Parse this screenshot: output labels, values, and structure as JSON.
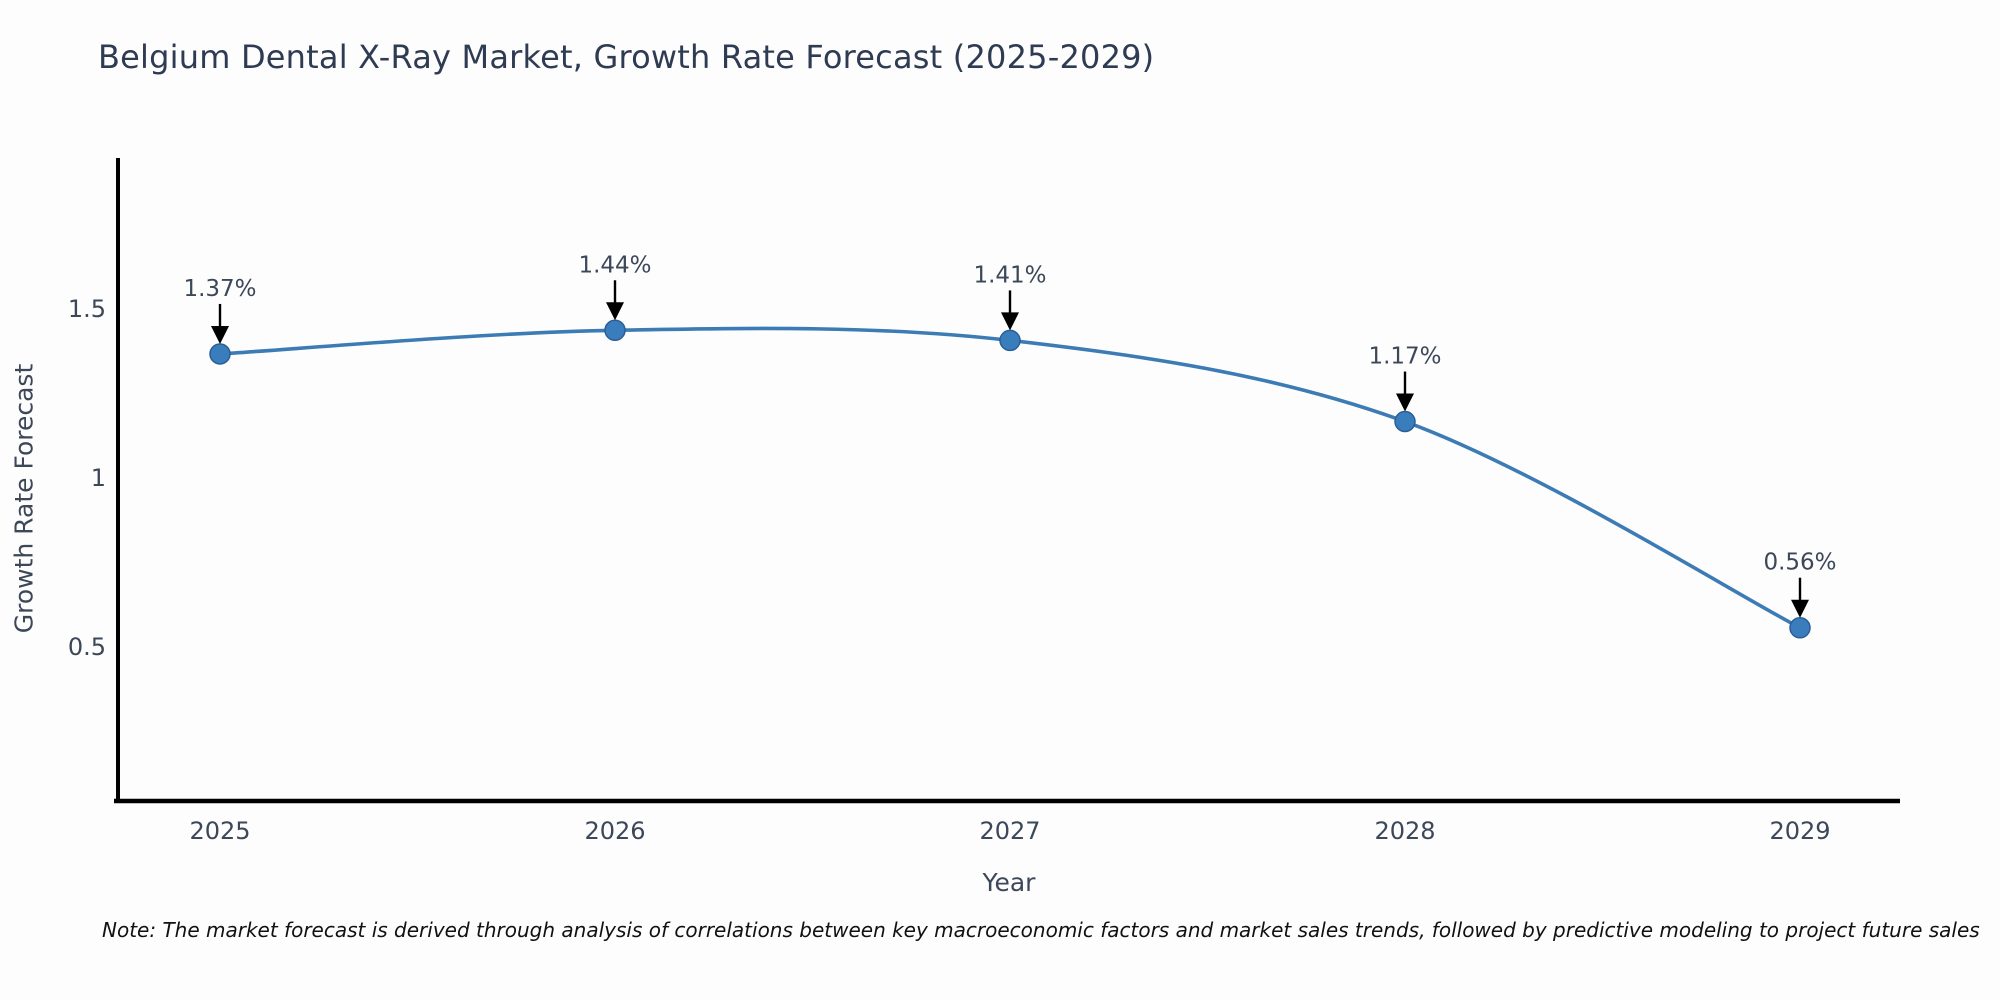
{
  "chart_data": {
    "type": "line",
    "title": "Belgium Dental X-Ray Market, Growth Rate Forecast (2025-2029)",
    "categories": [
      "2025",
      "2026",
      "2027",
      "2028",
      "2029"
    ],
    "series": [
      {
        "name": "Growth Rate Forecast",
        "values": [
          1.37,
          1.44,
          1.41,
          1.17,
          0.56
        ]
      }
    ],
    "point_labels": [
      "1.37%",
      "1.44%",
      "1.41%",
      "1.17%",
      "0.56%"
    ],
    "xlabel": "Year",
    "ylabel": "Growth Rate Forecast",
    "yticks": [
      0.5,
      1,
      1.5
    ],
    "ytick_labels": [
      "0.5",
      "1",
      "1.5"
    ],
    "ylim": [
      0.05,
      1.95
    ],
    "grid": false,
    "legend_position": "none",
    "marker": "circle",
    "annotation_arrows": true,
    "colors": {
      "line": "#3d7bb5",
      "marker_fill": "#3a7dbd",
      "marker_edge": "#2a5f96",
      "arrow": "#000000",
      "tick_text": "#3c4758",
      "title_text": "#2e3b52",
      "axis": "#000000",
      "note_text": "#111111"
    }
  },
  "note": "Note: The market forecast is derived through analysis of correlations between key macroeconomic factors and market sales trends, followed by predictive modeling to project future sales"
}
